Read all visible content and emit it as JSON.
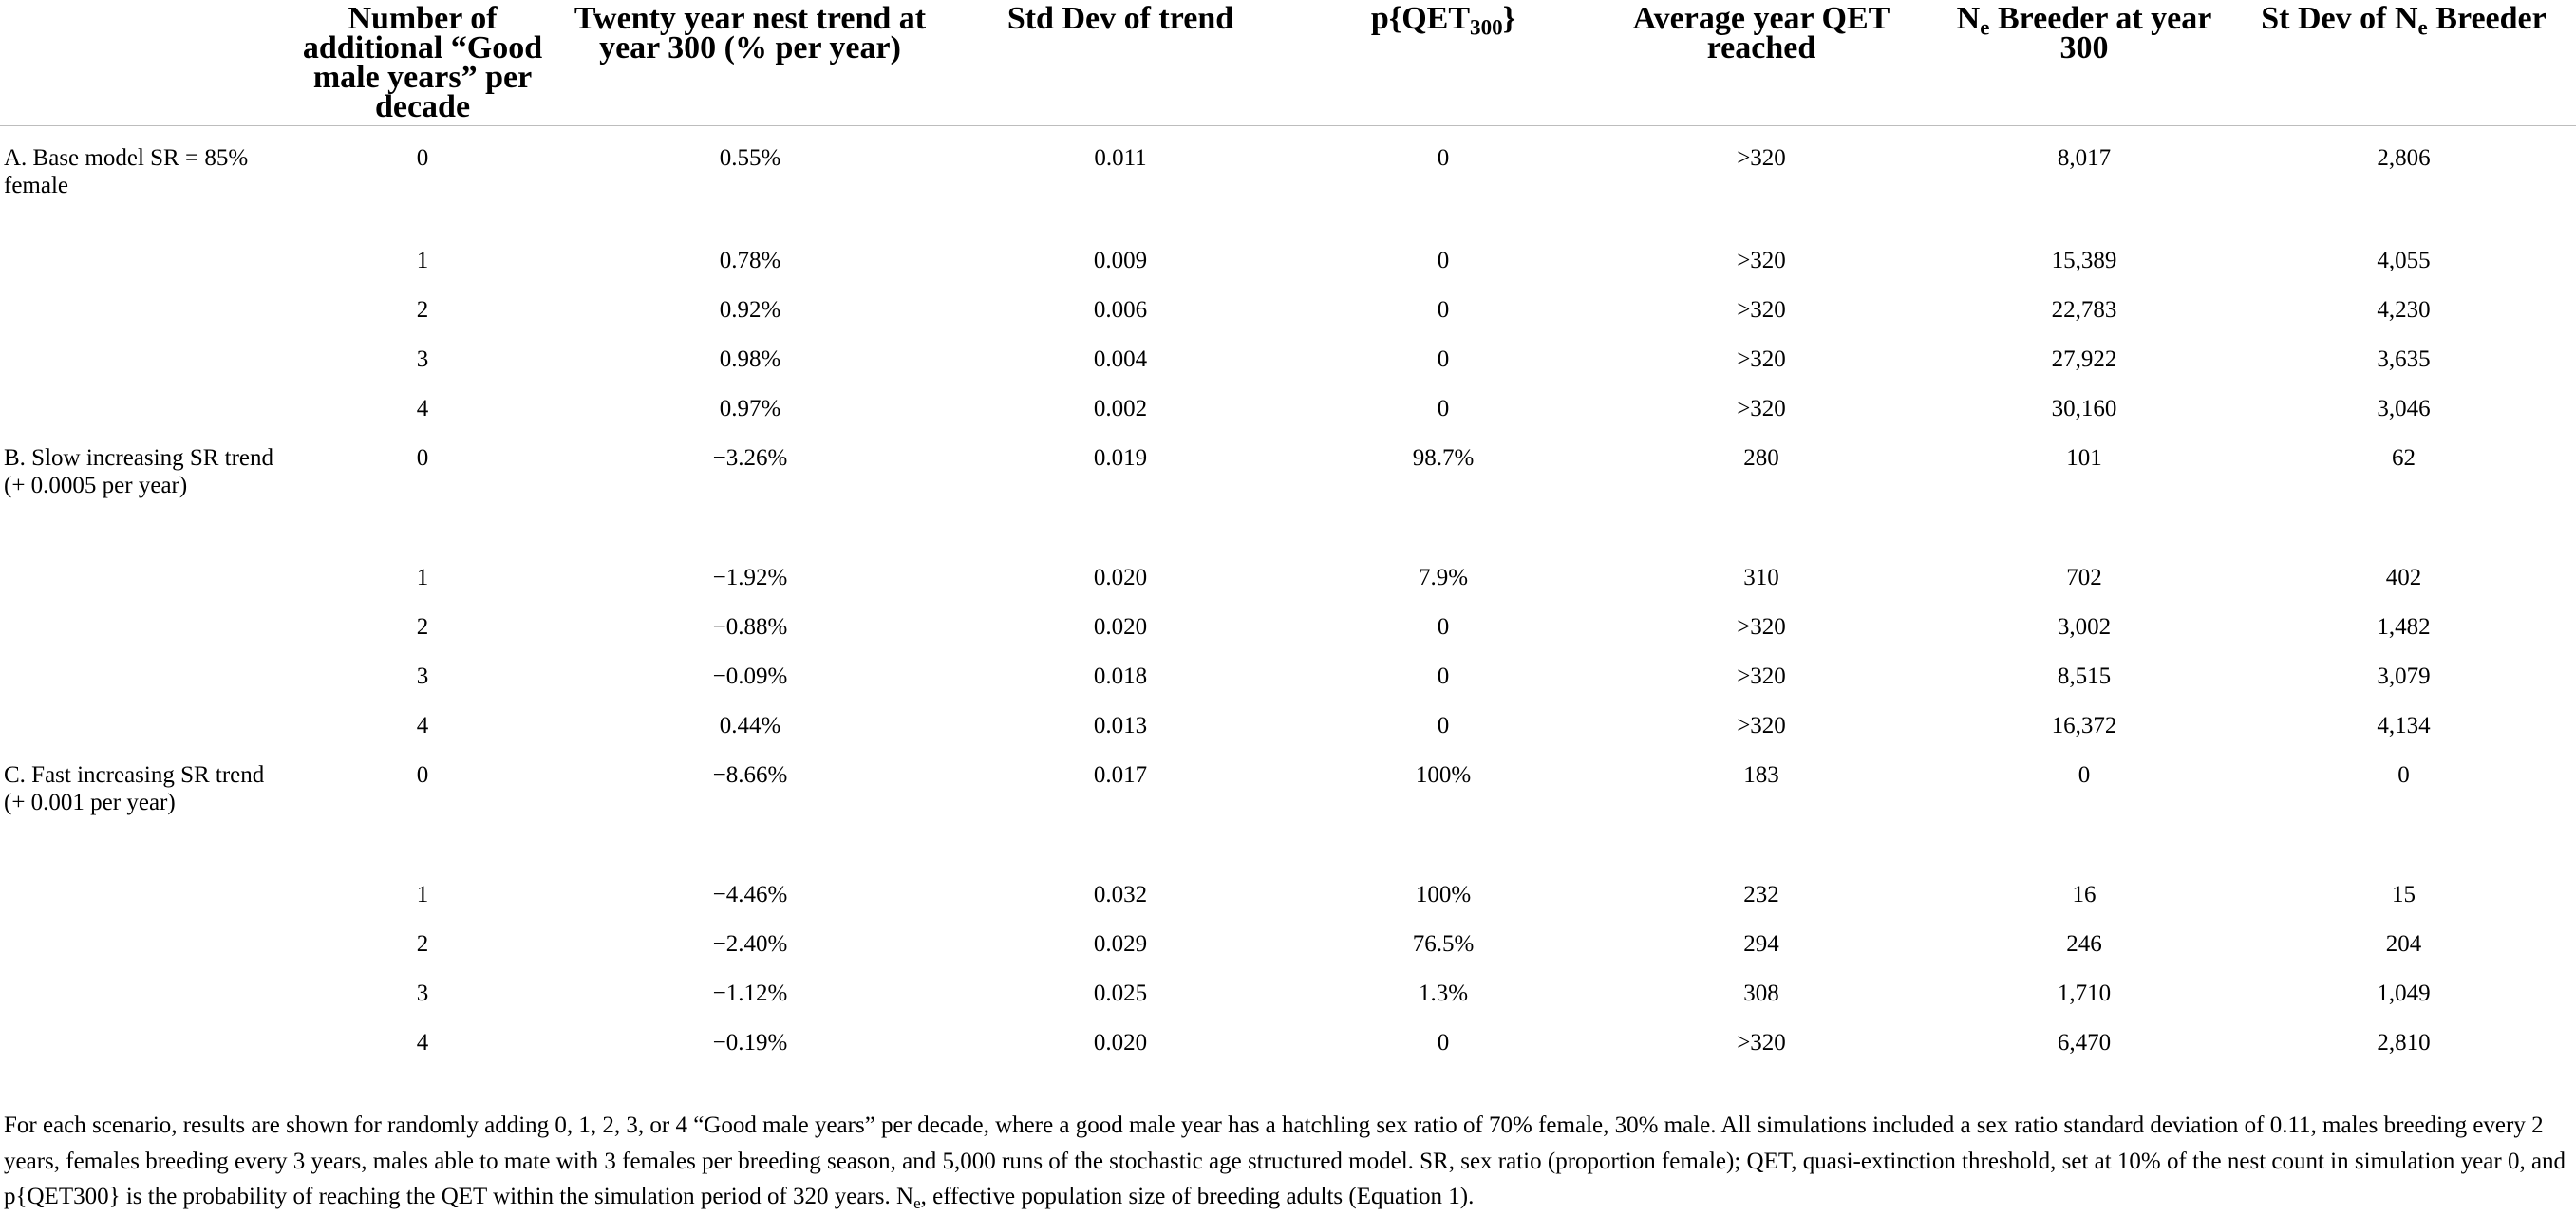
{
  "table": {
    "headers": [
      {
        "pre": "",
        "text": "",
        "sub": "",
        "post": ""
      },
      {
        "pre": "Number of additional “Good male years” per decade",
        "sub": "",
        "post": ""
      },
      {
        "pre": "Twenty year nest trend at year 300 (% per year)",
        "sub": "",
        "post": ""
      },
      {
        "pre": "Std Dev of trend",
        "sub": "",
        "post": ""
      },
      {
        "pre": "p{QET",
        "sub": "300",
        "post": "}"
      },
      {
        "pre": "Average year QET reached",
        "sub": "",
        "post": ""
      },
      {
        "pre": "N",
        "sub": "e",
        "post": " Breeder at year 300"
      },
      {
        "pre": "St Dev of N",
        "sub": "e",
        "post": " Breeder"
      }
    ],
    "groups": [
      {
        "label": "A. Base model SR = 85% female",
        "rows": [
          [
            "0",
            "0.55%",
            "0.011",
            "0",
            ">320",
            "8,017",
            "2,806"
          ],
          [
            "1",
            "0.78%",
            "0.009",
            "0",
            ">320",
            "15,389",
            "4,055"
          ],
          [
            "2",
            "0.92%",
            "0.006",
            "0",
            ">320",
            "22,783",
            "4,230"
          ],
          [
            "3",
            "0.98%",
            "0.004",
            "0",
            ">320",
            "27,922",
            "3,635"
          ],
          [
            "4",
            "0.97%",
            "0.002",
            "0",
            ">320",
            "30,160",
            "3,046"
          ]
        ]
      },
      {
        "label": "B. Slow increasing SR trend (+ 0.0005 per year)",
        "rows": [
          [
            "0",
            "−3.26%",
            "0.019",
            "98.7%",
            "280",
            "101",
            "62"
          ],
          [
            "1",
            "−1.92%",
            "0.020",
            "7.9%",
            "310",
            "702",
            "402"
          ],
          [
            "2",
            "−0.88%",
            "0.020",
            "0",
            ">320",
            "3,002",
            "1,482"
          ],
          [
            "3",
            "−0.09%",
            "0.018",
            "0",
            ">320",
            "8,515",
            "3,079"
          ],
          [
            "4",
            "0.44%",
            "0.013",
            "0",
            ">320",
            "16,372",
            "4,134"
          ]
        ]
      },
      {
        "label": "C. Fast increasing SR trend (+ 0.001 per year)",
        "rows": [
          [
            "0",
            "−8.66%",
            "0.017",
            "100%",
            "183",
            "0",
            "0"
          ],
          [
            "1",
            "−4.46%",
            "0.032",
            "100%",
            "232",
            "16",
            "15"
          ],
          [
            "2",
            "−2.40%",
            "0.029",
            "76.5%",
            "294",
            "246",
            "204"
          ],
          [
            "3",
            "−1.12%",
            "0.025",
            "1.3%",
            "308",
            "1,710",
            "1,049"
          ],
          [
            "4",
            "−0.19%",
            "0.020",
            "0",
            ">320",
            "6,470",
            "2,810"
          ]
        ]
      }
    ]
  },
  "footnote": {
    "pre": "For each scenario, results are shown for randomly adding 0, 1, 2, 3, or 4 “Good male years” per decade, where a good male year has a hatchling sex ratio of 70% female, 30% male. All simulations included a sex ratio standard deviation of 0.11, males breeding every 2 years, females breeding every 3 years, males able to mate with 3 females per breeding season, and 5,000 runs of the stochastic age structured model. SR, sex ratio (proportion female); QET, quasi-extinction threshold, set at 10% of the nest count in simulation year 0, and p{QET300} is the probability of reaching the QET within the simulation period of 320 years. N",
    "sub": "e",
    "post": ", effective population size of breeding adults (Equation 1)."
  }
}
